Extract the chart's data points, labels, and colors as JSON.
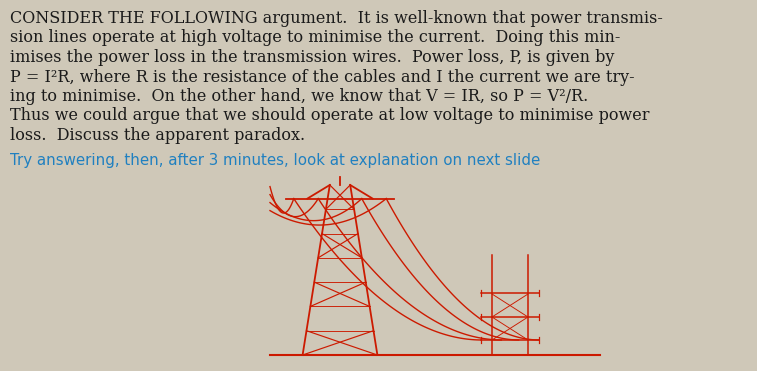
{
  "background_color": "#cfc8b8",
  "text_color": "#1a1a1a",
  "sub_text_color": "#2080c0",
  "tower_color": "#cc1a00",
  "font_size_main": 11.5,
  "font_size_sub": 10.8,
  "lines": [
    "CONSIDER THE FOLLOWING argument.  It is well-known that power transmis-",
    "sion lines operate at high voltage to minimise the current.  Doing this min-",
    "imises the power loss in the transmission wires.  Power loss, P, is given by",
    "P = I²R, where R is the resistance of the cables and I the current we are try-",
    "ing to minimise.  On the other hand, we know that V = IR, so P = V²/R.",
    "Thus we could argue that we should operate at low voltage to minimise power",
    "loss.  Discuss the apparent paradox."
  ],
  "subline": "Try answering, then, after 3 minutes, look at explanation on next slide",
  "fig_width": 7.57,
  "fig_height": 3.71,
  "dpi": 100
}
